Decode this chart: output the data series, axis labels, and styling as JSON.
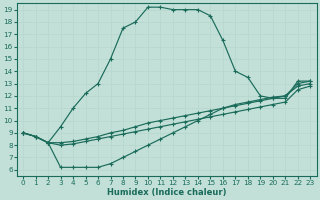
{
  "xlabel": "Humidex (Indice chaleur)",
  "xlim": [
    -0.5,
    23.5
  ],
  "ylim": [
    5.5,
    19.5
  ],
  "xticks": [
    0,
    1,
    2,
    3,
    4,
    5,
    6,
    7,
    8,
    9,
    10,
    11,
    12,
    13,
    14,
    15,
    16,
    17,
    18,
    19,
    20,
    21,
    22,
    23
  ],
  "yticks": [
    6,
    7,
    8,
    9,
    10,
    11,
    12,
    13,
    14,
    15,
    16,
    17,
    18,
    19
  ],
  "bg_color": "#c2e0d8",
  "line_color": "#1a6b5a",
  "grid_color": "#b8d8d0",
  "curves": [
    {
      "x": [
        0,
        1,
        2,
        3,
        4,
        5,
        6,
        7,
        8,
        9,
        10,
        11,
        12,
        13,
        14,
        15,
        16,
        17,
        18,
        19,
        20,
        21,
        22,
        23
      ],
      "y": [
        9.0,
        8.7,
        8.2,
        9.5,
        11.0,
        12.2,
        13.0,
        15.0,
        17.5,
        18.0,
        19.2,
        19.2,
        19.0,
        19.0,
        19.0,
        18.5,
        16.5,
        14.0,
        13.5,
        12.0,
        11.8,
        11.8,
        13.2,
        13.2
      ]
    },
    {
      "x": [
        0,
        1,
        2,
        3,
        4,
        5,
        6,
        7,
        8,
        9,
        10,
        11,
        12,
        13,
        14,
        15,
        16,
        17,
        18,
        19,
        20,
        21,
        22,
        23
      ],
      "y": [
        9.0,
        8.7,
        8.2,
        8.2,
        8.3,
        8.5,
        8.7,
        9.0,
        9.2,
        9.5,
        9.8,
        10.0,
        10.2,
        10.4,
        10.6,
        10.8,
        11.0,
        11.2,
        11.4,
        11.6,
        11.8,
        12.0,
        12.8,
        13.0
      ]
    },
    {
      "x": [
        0,
        1,
        2,
        3,
        4,
        5,
        6,
        7,
        8,
        9,
        10,
        11,
        12,
        13,
        14,
        15,
        16,
        17,
        18,
        19,
        20,
        21,
        22,
        23
      ],
      "y": [
        9.0,
        8.7,
        8.2,
        8.0,
        8.1,
        8.3,
        8.5,
        8.7,
        8.9,
        9.1,
        9.3,
        9.5,
        9.7,
        9.9,
        10.1,
        10.3,
        10.5,
        10.7,
        10.9,
        11.1,
        11.3,
        11.5,
        12.5,
        12.8
      ]
    },
    {
      "x": [
        0,
        1,
        2,
        3,
        4,
        5,
        6,
        7,
        8,
        9,
        10,
        11,
        12,
        13,
        14,
        15,
        16,
        17,
        18,
        19,
        20,
        21,
        22,
        23
      ],
      "y": [
        9.0,
        8.7,
        8.2,
        6.2,
        6.2,
        6.2,
        6.2,
        6.5,
        7.0,
        7.5,
        8.0,
        8.5,
        9.0,
        9.5,
        10.0,
        10.5,
        11.0,
        11.3,
        11.5,
        11.7,
        11.9,
        12.0,
        13.0,
        13.2
      ]
    }
  ]
}
